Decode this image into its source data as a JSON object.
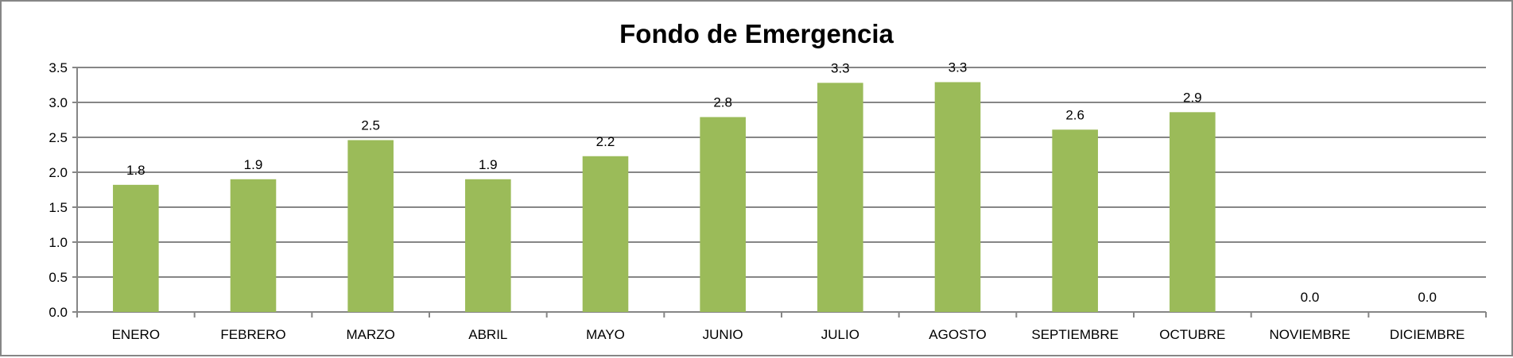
{
  "chart_data": {
    "type": "bar",
    "title": "Fondo de Emergencia",
    "xlabel": "",
    "ylabel": "",
    "categories": [
      "ENERO",
      "FEBRERO",
      "MARZO",
      "ABRIL",
      "MAYO",
      "JUNIO",
      "JULIO",
      "AGOSTO",
      "SEPTIEMBRE",
      "OCTUBRE",
      "NOVIEMBRE",
      "DICIEMBRE"
    ],
    "values": [
      1.82,
      1.9,
      2.46,
      1.9,
      2.23,
      2.79,
      3.28,
      3.29,
      2.61,
      2.86,
      0,
      0
    ],
    "data_labels": [
      "1.8",
      "1.9",
      "2.5",
      "1.9",
      "2.2",
      "2.8",
      "3.3",
      "3.3",
      "2.6",
      "2.9",
      "0.0",
      "0.0"
    ],
    "ylim": [
      0,
      3.5
    ],
    "yticks": [
      "0.0",
      "0.5",
      "1.0",
      "1.5",
      "2.0",
      "2.5",
      "3.0",
      "3.5"
    ],
    "grid": true,
    "legend": "none",
    "bar_color": "#9BBB59",
    "grid_color": "#868686"
  }
}
